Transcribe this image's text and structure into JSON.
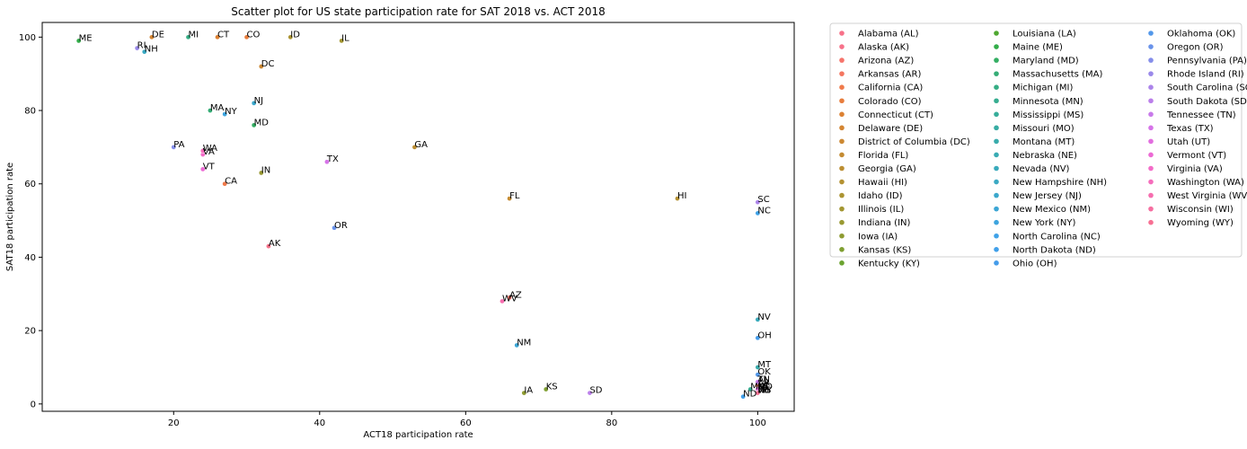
{
  "chart_data": {
    "type": "scatter",
    "title": "Scatter plot for US state participation rate for SAT 2018 vs. ACT 2018",
    "xlabel": "ACT18 participation rate",
    "ylabel": "SAT18 participation rate",
    "xlim": [
      2,
      105
    ],
    "ylim": [
      -2,
      104
    ],
    "xticks": [
      20,
      40,
      60,
      80,
      100
    ],
    "yticks": [
      0,
      20,
      40,
      60,
      80,
      100
    ],
    "grid": false,
    "legend": {
      "placement": "outside-right",
      "columns": 3
    },
    "points": [
      {
        "name": "Alabama (AL)",
        "abbr": "AL",
        "x": 100,
        "y": 6,
        "color": "#f77189"
      },
      {
        "name": "Alaska (AK)",
        "abbr": "AK",
        "x": 33,
        "y": 43,
        "color": "#f7728a"
      },
      {
        "name": "Arizona (AZ)",
        "abbr": "AZ",
        "x": 66,
        "y": 29,
        "color": "#f6746b"
      },
      {
        "name": "Arkansas (AR)",
        "abbr": "AR",
        "x": 100,
        "y": 5,
        "color": "#f47660"
      },
      {
        "name": "California (CA)",
        "abbr": "CA",
        "x": 27,
        "y": 60,
        "color": "#f07a4b"
      },
      {
        "name": "Colorado (CO)",
        "abbr": "CO",
        "x": 30,
        "y": 100,
        "color": "#e87d3c"
      },
      {
        "name": "Connecticut (CT)",
        "abbr": "CT",
        "x": 26,
        "y": 100,
        "color": "#dc8133"
      },
      {
        "name": "Delaware (DE)",
        "abbr": "DE",
        "x": 17,
        "y": 100,
        "color": "#d48532"
      },
      {
        "name": "District of Columbia (DC)",
        "abbr": "DC",
        "x": 32,
        "y": 92,
        "color": "#cc8832"
      },
      {
        "name": "Florida (FL)",
        "abbr": "FL",
        "x": 66,
        "y": 56,
        "color": "#c48b32"
      },
      {
        "name": "Georgia (GA)",
        "abbr": "GA",
        "x": 53,
        "y": 70,
        "color": "#bc8e32"
      },
      {
        "name": "Hawaii (HI)",
        "abbr": "HI",
        "x": 89,
        "y": 56,
        "color": "#b49132"
      },
      {
        "name": "Idaho (ID)",
        "abbr": "ID",
        "x": 36,
        "y": 100,
        "color": "#ac9432"
      },
      {
        "name": "Illinois (IL)",
        "abbr": "IL",
        "x": 43,
        "y": 99,
        "color": "#a39631"
      },
      {
        "name": "Indiana (IN)",
        "abbr": "IN",
        "x": 32,
        "y": 63,
        "color": "#999932"
      },
      {
        "name": "Iowa (IA)",
        "abbr": "IA",
        "x": 68,
        "y": 3,
        "color": "#8e9b31"
      },
      {
        "name": "Kansas (KS)",
        "abbr": "KS",
        "x": 71,
        "y": 4,
        "color": "#7f9f31"
      },
      {
        "name": "Kentucky (KY)",
        "abbr": "KY",
        "x": 100,
        "y": 4,
        "color": "#6ba331"
      },
      {
        "name": "Louisiana (LA)",
        "abbr": "LA",
        "x": 100,
        "y": 4,
        "color": "#4fa831"
      },
      {
        "name": "Maine (ME)",
        "abbr": "ME",
        "x": 7,
        "y": 99,
        "color": "#33ad4a"
      },
      {
        "name": "Maryland (MD)",
        "abbr": "MD",
        "x": 31,
        "y": 76,
        "color": "#34ae63"
      },
      {
        "name": "Massachusetts (MA)",
        "abbr": "MA",
        "x": 25,
        "y": 80,
        "color": "#35ad76"
      },
      {
        "name": "Michigan (MI)",
        "abbr": "MI",
        "x": 22,
        "y": 100,
        "color": "#35ad84"
      },
      {
        "name": "Minnesota (MN)",
        "abbr": "MN",
        "x": 99,
        "y": 4,
        "color": "#36ad90"
      },
      {
        "name": "Mississippi (MS)",
        "abbr": "MS",
        "x": 100,
        "y": 3,
        "color": "#36ad9a"
      },
      {
        "name": "Missouri (MO)",
        "abbr": "MO",
        "x": 100,
        "y": 4,
        "color": "#37aca3"
      },
      {
        "name": "Montana (MT)",
        "abbr": "MT",
        "x": 100,
        "y": 10,
        "color": "#38abab"
      },
      {
        "name": "Nebraska (NE)",
        "abbr": "NE",
        "x": 100,
        "y": 3,
        "color": "#38abb3"
      },
      {
        "name": "Nevada (NV)",
        "abbr": "NV",
        "x": 100,
        "y": 23,
        "color": "#39aabb"
      },
      {
        "name": "New Hampshire (NH)",
        "abbr": "NH",
        "x": 16,
        "y": 96,
        "color": "#3aa9c3"
      },
      {
        "name": "New Jersey (NJ)",
        "abbr": "NJ",
        "x": 31,
        "y": 82,
        "color": "#3ba8cc"
      },
      {
        "name": "New Mexico (NM)",
        "abbr": "NM",
        "x": 67,
        "y": 16,
        "color": "#3ca6d5"
      },
      {
        "name": "New York (NY)",
        "abbr": "NY",
        "x": 27,
        "y": 79,
        "color": "#3da4de"
      },
      {
        "name": "North Carolina (NC)",
        "abbr": "NC",
        "x": 100,
        "y": 52,
        "color": "#3fa2e8"
      },
      {
        "name": "North Dakota (ND)",
        "abbr": "ND",
        "x": 98,
        "y": 2,
        "color": "#41a0ea"
      },
      {
        "name": "Ohio (OH)",
        "abbr": "OH",
        "x": 100,
        "y": 18,
        "color": "#459cea"
      },
      {
        "name": "Oklahoma (OK)",
        "abbr": "OK",
        "x": 100,
        "y": 8,
        "color": "#5398ea"
      },
      {
        "name": "Oregon (OR)",
        "abbr": "OR",
        "x": 42,
        "y": 48,
        "color": "#6a93ea"
      },
      {
        "name": "Pennsylvania (PA)",
        "abbr": "PA",
        "x": 20,
        "y": 70,
        "color": "#858eea"
      },
      {
        "name": "Rhode Island (RI)",
        "abbr": "RI",
        "x": 15,
        "y": 97,
        "color": "#9a89ea"
      },
      {
        "name": "South Carolina (SC)",
        "abbr": "SC",
        "x": 100,
        "y": 55,
        "color": "#ac84ea"
      },
      {
        "name": "South Dakota (SD)",
        "abbr": "SD",
        "x": 77,
        "y": 3,
        "color": "#bb7fea"
      },
      {
        "name": "Tennessee (TN)",
        "abbr": "TN",
        "x": 100,
        "y": 6,
        "color": "#c87aea"
      },
      {
        "name": "Texas (TX)",
        "abbr": "TX",
        "x": 41,
        "y": 66,
        "color": "#d674e8"
      },
      {
        "name": "Utah (UT)",
        "abbr": "UT",
        "x": 100,
        "y": 4,
        "color": "#e26edf"
      },
      {
        "name": "Vermont (VT)",
        "abbr": "VT",
        "x": 24,
        "y": 64,
        "color": "#ec6ad4"
      },
      {
        "name": "Virginia (VA)",
        "abbr": "VA",
        "x": 24,
        "y": 68,
        "color": "#f36cc8"
      },
      {
        "name": "Washington (WA)",
        "abbr": "WA",
        "x": 24,
        "y": 69,
        "color": "#f56dbc"
      },
      {
        "name": "West Virginia (WV)",
        "abbr": "WV",
        "x": 65,
        "y": 28,
        "color": "#f66eaf"
      },
      {
        "name": "Wisconsin (WI)",
        "abbr": "WI",
        "x": 100,
        "y": 3,
        "color": "#f66fa1"
      },
      {
        "name": "Wyoming (WY)",
        "abbr": "WY",
        "x": 100,
        "y": 3,
        "color": "#f77093"
      }
    ]
  }
}
